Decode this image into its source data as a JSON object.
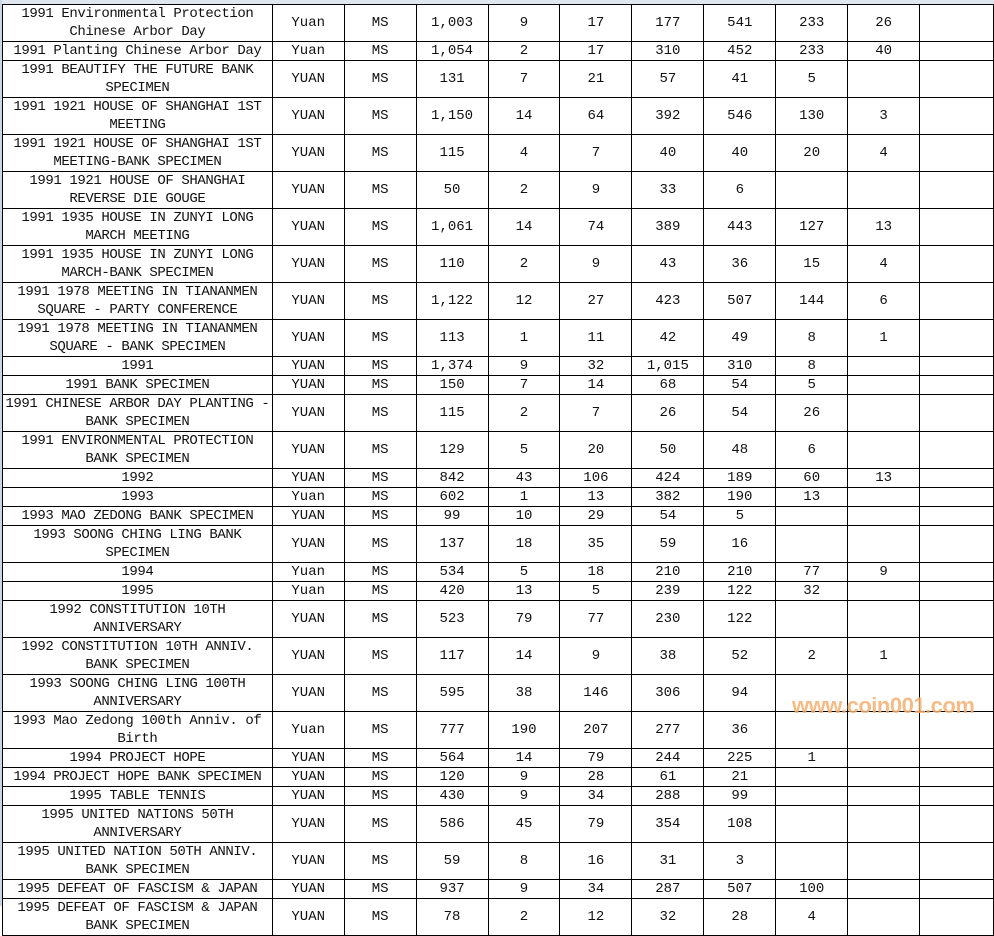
{
  "watermark": "www.coin001.com",
  "rows": [
    [
      "1991 Environmental Protection Chinese Arbor Day",
      "Yuan",
      "MS",
      "1,003",
      "9",
      "17",
      "177",
      "541",
      "233",
      "26",
      ""
    ],
    [
      "1991 Planting Chinese Arbor Day",
      "Yuan",
      "MS",
      "1,054",
      "2",
      "17",
      "310",
      "452",
      "233",
      "40",
      ""
    ],
    [
      "1991 BEAUTIFY THE FUTURE BANK SPECIMEN",
      "YUAN",
      "MS",
      "131",
      "7",
      "21",
      "57",
      "41",
      "5",
      "",
      ""
    ],
    [
      "1991 1921 HOUSE OF SHANGHAI 1ST MEETING",
      "YUAN",
      "MS",
      "1,150",
      "14",
      "64",
      "392",
      "546",
      "130",
      "3",
      ""
    ],
    [
      "1991 1921 HOUSE OF SHANGHAI 1ST MEETING-BANK SPECIMEN",
      "YUAN",
      "MS",
      "115",
      "4",
      "7",
      "40",
      "40",
      "20",
      "4",
      ""
    ],
    [
      "1991 1921 HOUSE OF SHANGHAI REVERSE DIE GOUGE",
      "YUAN",
      "MS",
      "50",
      "2",
      "9",
      "33",
      "6",
      "",
      "",
      ""
    ],
    [
      "1991 1935 HOUSE IN ZUNYI LONG MARCH MEETING",
      "YUAN",
      "MS",
      "1,061",
      "14",
      "74",
      "389",
      "443",
      "127",
      "13",
      ""
    ],
    [
      "1991 1935 HOUSE IN ZUNYI LONG MARCH-BANK SPECIMEN",
      "YUAN",
      "MS",
      "110",
      "2",
      "9",
      "43",
      "36",
      "15",
      "4",
      ""
    ],
    [
      "1991 1978 MEETING IN TIANANMEN SQUARE - PARTY CONFERENCE",
      "YUAN",
      "MS",
      "1,122",
      "12",
      "27",
      "423",
      "507",
      "144",
      "6",
      ""
    ],
    [
      "1991 1978 MEETING IN TIANANMEN SQUARE - BANK SPECIMEN",
      "YUAN",
      "MS",
      "113",
      "1",
      "11",
      "42",
      "49",
      "8",
      "1",
      ""
    ],
    [
      "1991",
      "YUAN",
      "MS",
      "1,374",
      "9",
      "32",
      "1,015",
      "310",
      "8",
      "",
      ""
    ],
    [
      "1991 BANK SPECIMEN",
      "YUAN",
      "MS",
      "150",
      "7",
      "14",
      "68",
      "54",
      "5",
      "",
      ""
    ],
    [
      "1991 CHINESE ARBOR DAY PLANTING - BANK SPECIMEN",
      "YUAN",
      "MS",
      "115",
      "2",
      "7",
      "26",
      "54",
      "26",
      "",
      ""
    ],
    [
      "1991 ENVIRONMENTAL PROTECTION BANK SPECIMEN",
      "YUAN",
      "MS",
      "129",
      "5",
      "20",
      "50",
      "48",
      "6",
      "",
      ""
    ],
    [
      "1992",
      "YUAN",
      "MS",
      "842",
      "43",
      "106",
      "424",
      "189",
      "60",
      "13",
      ""
    ],
    [
      "1993",
      "Yuan",
      "MS",
      "602",
      "1",
      "13",
      "382",
      "190",
      "13",
      "",
      ""
    ],
    [
      "1993 MAO ZEDONG BANK SPECIMEN",
      "YUAN",
      "MS",
      "99",
      "10",
      "29",
      "54",
      "5",
      "",
      "",
      ""
    ],
    [
      "1993 SOONG CHING LING BANK SPECIMEN",
      "YUAN",
      "MS",
      "137",
      "18",
      "35",
      "59",
      "16",
      "",
      "",
      ""
    ],
    [
      "1994",
      "Yuan",
      "MS",
      "534",
      "5",
      "18",
      "210",
      "210",
      "77",
      "9",
      ""
    ],
    [
      "1995",
      "Yuan",
      "MS",
      "420",
      "13",
      "5",
      "239",
      "122",
      "32",
      "",
      ""
    ],
    [
      "1992 CONSTITUTION 10TH ANNIVERSARY",
      "YUAN",
      "MS",
      "523",
      "79",
      "77",
      "230",
      "122",
      "",
      "",
      ""
    ],
    [
      "1992 CONSTITUTION 10TH ANNIV. BANK SPECIMEN",
      "YUAN",
      "MS",
      "117",
      "14",
      "9",
      "38",
      "52",
      "2",
      "1",
      ""
    ],
    [
      "1993 SOONG CHING LING 100TH ANNIVERSARY",
      "YUAN",
      "MS",
      "595",
      "38",
      "146",
      "306",
      "94",
      "",
      "",
      ""
    ],
    [
      "1993 Mao Zedong 100th Anniv. of Birth",
      "Yuan",
      "MS",
      "777",
      "190",
      "207",
      "277",
      "36",
      "",
      "",
      ""
    ],
    [
      "1994 PROJECT HOPE",
      "YUAN",
      "MS",
      "564",
      "14",
      "79",
      "244",
      "225",
      "1",
      "",
      ""
    ],
    [
      "1994 PROJECT HOPE BANK SPECIMEN",
      "YUAN",
      "MS",
      "120",
      "9",
      "28",
      "61",
      "21",
      "",
      "",
      ""
    ],
    [
      "1995 TABLE TENNIS",
      "YUAN",
      "MS",
      "430",
      "9",
      "34",
      "288",
      "99",
      "",
      "",
      ""
    ],
    [
      "1995 UNITED NATIONS 50TH ANNIVERSARY",
      "YUAN",
      "MS",
      "586",
      "45",
      "79",
      "354",
      "108",
      "",
      "",
      ""
    ],
    [
      "1995 UNITED NATION 50TH ANNIV. BANK SPECIMEN",
      "YUAN",
      "MS",
      "59",
      "8",
      "16",
      "31",
      "3",
      "",
      "",
      ""
    ],
    [
      "1995 DEFEAT OF FASCISM & JAPAN",
      "YUAN",
      "MS",
      "937",
      "9",
      "34",
      "287",
      "507",
      "100",
      "",
      ""
    ],
    [
      "1995 DEFEAT OF FASCISM & JAPAN BANK SPECIMEN",
      "YUAN",
      "MS",
      "78",
      "2",
      "12",
      "32",
      "28",
      "4",
      "",
      ""
    ]
  ]
}
